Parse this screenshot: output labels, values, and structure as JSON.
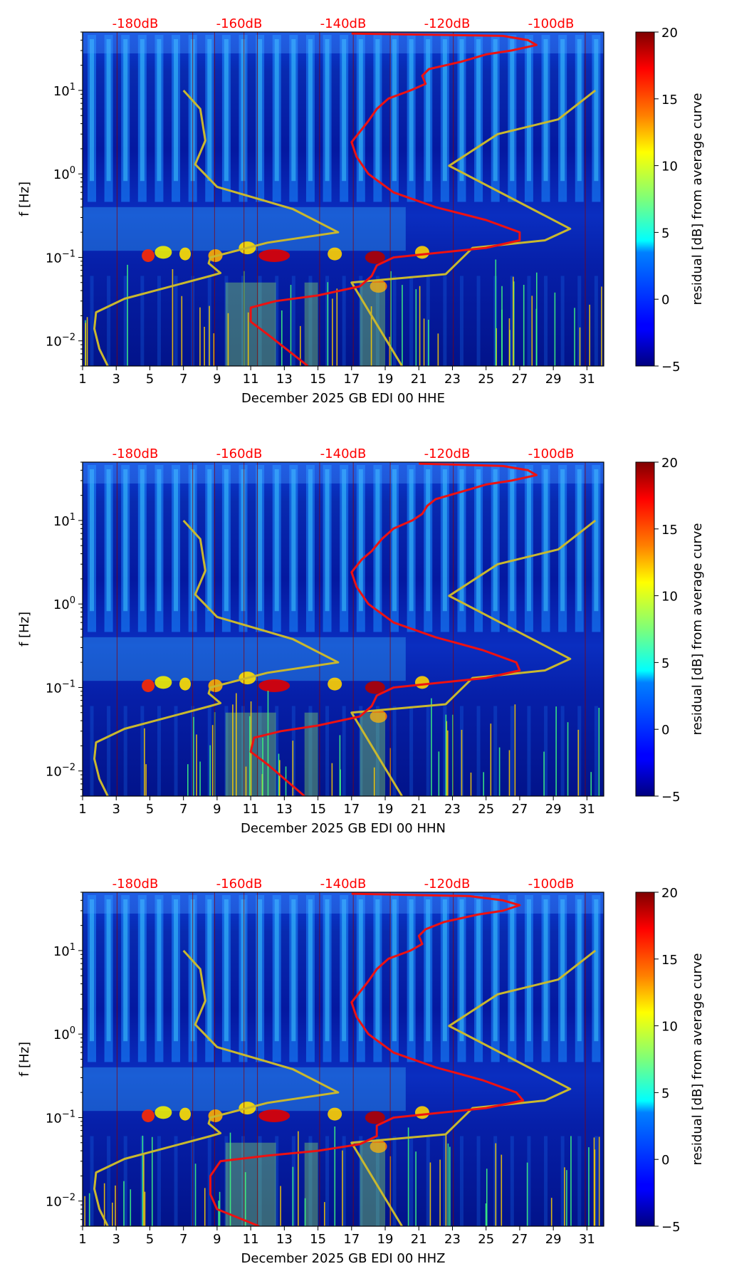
{
  "chart_data": [
    {
      "type": "heatmap",
      "title": "",
      "xlabel": "December 2025 GB EDI 00 HHE",
      "ylabel": "f [Hz]",
      "colorbar_label": "residual [dB] from average curve",
      "xlim": [
        1,
        32
      ],
      "ylim": [
        0.005,
        50
      ],
      "x_ticks": [
        "1",
        "3",
        "5",
        "7",
        "9",
        "11",
        "13",
        "15",
        "17",
        "19",
        "21",
        "23",
        "25",
        "27",
        "29",
        "31"
      ],
      "y_ticks": [
        {
          "exp": "-2",
          "base": "10"
        },
        {
          "exp": "-1",
          "base": "10"
        },
        {
          "exp": "0",
          "base": "10"
        },
        {
          "exp": "1",
          "base": "10"
        }
      ],
      "db_labels": [
        "-180dB",
        "-160dB",
        "-140dB",
        "-120dB",
        "-100dB"
      ],
      "colorbar_ticks": [
        "20",
        "15",
        "10",
        "5",
        "0",
        "−5"
      ],
      "clim": [
        -5,
        20
      ],
      "model_curve_x": [
        [
          2.5,
          0.005
        ],
        [
          2.0,
          0.008
        ],
        [
          1.7,
          0.014
        ],
        [
          1.8,
          0.022
        ],
        [
          3.5,
          0.032
        ],
        [
          8.6,
          0.06
        ],
        [
          9.2,
          0.065
        ],
        [
          8.5,
          0.085
        ],
        [
          8.6,
          0.1
        ],
        [
          12.0,
          0.15
        ],
        [
          16.2,
          0.2
        ],
        [
          13.5,
          0.38
        ],
        [
          9.0,
          0.7
        ],
        [
          7.7,
          1.3
        ],
        [
          8.3,
          2.5
        ],
        [
          8.0,
          6.0
        ],
        [
          7.0,
          10.0
        ]
      ],
      "model_curve_y": [
        [
          20.0,
          0.005
        ],
        [
          17.0,
          0.05
        ],
        [
          22.6,
          0.063
        ],
        [
          24.2,
          0.13
        ],
        [
          28.5,
          0.16
        ],
        [
          30.0,
          0.22
        ],
        [
          22.8,
          1.25
        ],
        [
          25.7,
          3.0
        ],
        [
          29.3,
          4.5
        ],
        [
          31.5,
          10.0
        ]
      ],
      "median_curve": [
        [
          14.4,
          0.005
        ],
        [
          12.0,
          0.012
        ],
        [
          11.0,
          0.017
        ],
        [
          11.0,
          0.025
        ],
        [
          12.5,
          0.03
        ],
        [
          15.0,
          0.035
        ],
        [
          17.5,
          0.045
        ],
        [
          18.2,
          0.06
        ],
        [
          18.5,
          0.08
        ],
        [
          19.5,
          0.1
        ],
        [
          25.0,
          0.13
        ],
        [
          27.0,
          0.16
        ],
        [
          27.0,
          0.2
        ],
        [
          25.0,
          0.28
        ],
        [
          22.0,
          0.4
        ],
        [
          19.5,
          0.6
        ],
        [
          18.0,
          1.0
        ],
        [
          17.3,
          1.6
        ],
        [
          17.0,
          2.4
        ],
        [
          17.6,
          3.4
        ],
        [
          18.0,
          4.3
        ],
        [
          18.5,
          6.0
        ],
        [
          19.2,
          8.0
        ],
        [
          20.5,
          10.0
        ],
        [
          21.4,
          12.0
        ],
        [
          21.2,
          15.0
        ],
        [
          21.6,
          18.0
        ],
        [
          23.5,
          22.0
        ],
        [
          25.0,
          27.0
        ],
        [
          26.5,
          30.0
        ],
        [
          28.0,
          35.0
        ],
        [
          27.5,
          40.0
        ],
        [
          26.0,
          45.0
        ],
        [
          17.0,
          48.0
        ]
      ]
    },
    {
      "type": "heatmap",
      "title": "",
      "xlabel": "December 2025 GB EDI 00 HHN",
      "ylabel": "f [Hz]",
      "colorbar_label": "residual [dB] from average curve",
      "xlim": [
        1,
        32
      ],
      "ylim": [
        0.005,
        50
      ],
      "x_ticks": [
        "1",
        "3",
        "5",
        "7",
        "9",
        "11",
        "13",
        "15",
        "17",
        "19",
        "21",
        "23",
        "25",
        "27",
        "29",
        "31"
      ],
      "y_ticks": [
        {
          "exp": "-2",
          "base": "10"
        },
        {
          "exp": "-1",
          "base": "10"
        },
        {
          "exp": "0",
          "base": "10"
        },
        {
          "exp": "1",
          "base": "10"
        }
      ],
      "db_labels": [
        "-180dB",
        "-160dB",
        "-140dB",
        "-120dB",
        "-100dB"
      ],
      "colorbar_ticks": [
        "20",
        "15",
        "10",
        "5",
        "0",
        "−5"
      ],
      "clim": [
        -5,
        20
      ],
      "model_curve_x": [
        [
          2.5,
          0.005
        ],
        [
          2.0,
          0.008
        ],
        [
          1.7,
          0.014
        ],
        [
          1.8,
          0.022
        ],
        [
          3.5,
          0.032
        ],
        [
          8.6,
          0.06
        ],
        [
          9.2,
          0.065
        ],
        [
          8.5,
          0.085
        ],
        [
          8.6,
          0.1
        ],
        [
          12.0,
          0.15
        ],
        [
          16.2,
          0.2
        ],
        [
          13.5,
          0.38
        ],
        [
          9.0,
          0.7
        ],
        [
          7.7,
          1.3
        ],
        [
          8.3,
          2.5
        ],
        [
          8.0,
          6.0
        ],
        [
          7.0,
          10.0
        ]
      ],
      "model_curve_y": [
        [
          20.0,
          0.005
        ],
        [
          17.0,
          0.05
        ],
        [
          22.6,
          0.063
        ],
        [
          24.2,
          0.13
        ],
        [
          28.5,
          0.16
        ],
        [
          30.0,
          0.22
        ],
        [
          22.8,
          1.25
        ],
        [
          25.7,
          3.0
        ],
        [
          29.3,
          4.5
        ],
        [
          31.5,
          10.0
        ]
      ],
      "median_curve": [
        [
          14.2,
          0.005
        ],
        [
          12.0,
          0.012
        ],
        [
          11.0,
          0.017
        ],
        [
          11.2,
          0.025
        ],
        [
          12.8,
          0.03
        ],
        [
          15.0,
          0.035
        ],
        [
          17.5,
          0.045
        ],
        [
          18.2,
          0.06
        ],
        [
          18.5,
          0.08
        ],
        [
          19.5,
          0.1
        ],
        [
          25.0,
          0.13
        ],
        [
          27.0,
          0.16
        ],
        [
          26.8,
          0.2
        ],
        [
          24.8,
          0.28
        ],
        [
          22.0,
          0.4
        ],
        [
          19.5,
          0.6
        ],
        [
          18.0,
          1.0
        ],
        [
          17.3,
          1.6
        ],
        [
          17.0,
          2.4
        ],
        [
          17.6,
          3.4
        ],
        [
          18.2,
          4.3
        ],
        [
          18.8,
          6.0
        ],
        [
          19.5,
          8.0
        ],
        [
          20.6,
          10.0
        ],
        [
          21.2,
          12.0
        ],
        [
          21.5,
          15.0
        ],
        [
          22.0,
          18.0
        ],
        [
          23.5,
          22.0
        ],
        [
          25.0,
          27.0
        ],
        [
          26.5,
          30.0
        ],
        [
          28.0,
          35.0
        ],
        [
          27.5,
          40.0
        ],
        [
          26.0,
          45.0
        ],
        [
          21.0,
          48.0
        ]
      ]
    },
    {
      "type": "heatmap",
      "title": "",
      "xlabel": "December 2025 GB EDI 00 HHZ",
      "ylabel": "f [Hz]",
      "colorbar_label": "residual [dB] from average curve",
      "xlim": [
        1,
        32
      ],
      "ylim": [
        0.005,
        50
      ],
      "x_ticks": [
        "1",
        "3",
        "5",
        "7",
        "9",
        "11",
        "13",
        "15",
        "17",
        "19",
        "21",
        "23",
        "25",
        "27",
        "29",
        "31"
      ],
      "y_ticks": [
        {
          "exp": "-2",
          "base": "10"
        },
        {
          "exp": "-1",
          "base": "10"
        },
        {
          "exp": "0",
          "base": "10"
        },
        {
          "exp": "1",
          "base": "10"
        }
      ],
      "db_labels": [
        "-180dB",
        "-160dB",
        "-140dB",
        "-120dB",
        "-100dB"
      ],
      "colorbar_ticks": [
        "20",
        "15",
        "10",
        "5",
        "0",
        "−5"
      ],
      "clim": [
        -5,
        20
      ],
      "model_curve_x": [
        [
          2.5,
          0.005
        ],
        [
          2.0,
          0.008
        ],
        [
          1.7,
          0.014
        ],
        [
          1.8,
          0.022
        ],
        [
          3.5,
          0.032
        ],
        [
          8.6,
          0.06
        ],
        [
          9.2,
          0.065
        ],
        [
          8.5,
          0.085
        ],
        [
          8.6,
          0.1
        ],
        [
          12.0,
          0.15
        ],
        [
          16.2,
          0.2
        ],
        [
          13.5,
          0.38
        ],
        [
          9.0,
          0.7
        ],
        [
          7.7,
          1.3
        ],
        [
          8.3,
          2.5
        ],
        [
          8.0,
          6.0
        ],
        [
          7.0,
          10.0
        ]
      ],
      "model_curve_y": [
        [
          20.0,
          0.005
        ],
        [
          17.0,
          0.05
        ],
        [
          22.6,
          0.063
        ],
        [
          24.2,
          0.13
        ],
        [
          28.5,
          0.16
        ],
        [
          30.0,
          0.22
        ],
        [
          22.8,
          1.25
        ],
        [
          25.7,
          3.0
        ],
        [
          29.3,
          4.5
        ],
        [
          31.5,
          10.0
        ]
      ],
      "median_curve": [
        [
          11.5,
          0.005
        ],
        [
          9.0,
          0.008
        ],
        [
          8.6,
          0.012
        ],
        [
          8.6,
          0.02
        ],
        [
          9.2,
          0.03
        ],
        [
          12.0,
          0.035
        ],
        [
          15.0,
          0.04
        ],
        [
          17.5,
          0.048
        ],
        [
          18.5,
          0.06
        ],
        [
          18.5,
          0.08
        ],
        [
          19.5,
          0.1
        ],
        [
          25.0,
          0.13
        ],
        [
          27.2,
          0.16
        ],
        [
          26.8,
          0.2
        ],
        [
          24.8,
          0.28
        ],
        [
          22.0,
          0.4
        ],
        [
          19.5,
          0.6
        ],
        [
          18.0,
          1.0
        ],
        [
          17.3,
          1.6
        ],
        [
          17.0,
          2.4
        ],
        [
          17.6,
          3.4
        ],
        [
          18.0,
          4.3
        ],
        [
          18.5,
          6.0
        ],
        [
          19.2,
          8.0
        ],
        [
          20.5,
          10.0
        ],
        [
          21.2,
          12.0
        ],
        [
          21.0,
          15.0
        ],
        [
          21.4,
          18.0
        ],
        [
          22.5,
          22.0
        ],
        [
          24.5,
          27.0
        ],
        [
          26.0,
          30.0
        ],
        [
          27.0,
          35.0
        ],
        [
          26.0,
          40.0
        ],
        [
          24.0,
          45.0
        ],
        [
          17.0,
          48.0
        ]
      ]
    }
  ]
}
